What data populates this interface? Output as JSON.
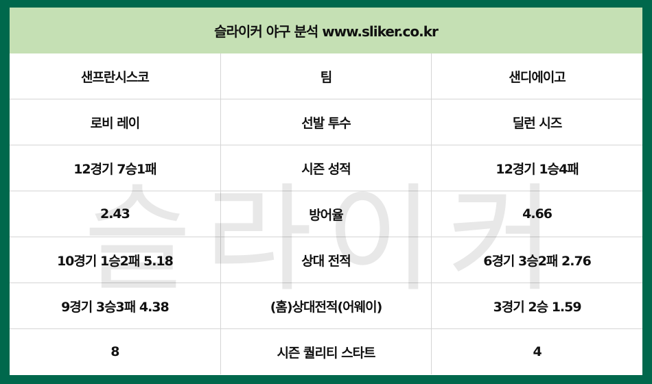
{
  "header": {
    "title": "슬라이커 야구 분석 www.sliker.co.kr"
  },
  "watermark": "슬라이커",
  "colors": {
    "frame": "#00684c",
    "header_bg": "#c5e0b4"
  },
  "table": {
    "rows": [
      [
        "샌프란시스코",
        "팀",
        "샌디에이고"
      ],
      [
        "로비 레이",
        "선발 투수",
        "딜런 시즈"
      ],
      [
        "12경기 7승1패",
        "시즌 성적",
        "12경기 1승4패"
      ],
      [
        "2.43",
        "방어율",
        "4.66"
      ],
      [
        "10경기 1승2패 5.18",
        "상대 전적",
        "6경기 3승2패 2.76"
      ],
      [
        "9경기 3승3패 4.38",
        "(홈)상대전적(어웨이)",
        "3경기 2승 1.59"
      ],
      [
        "8",
        "시즌 퀄리티 스타트",
        "4"
      ]
    ]
  }
}
